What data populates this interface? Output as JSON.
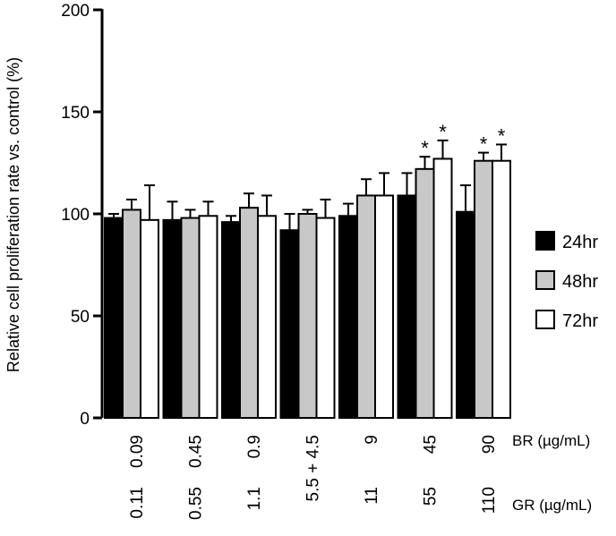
{
  "chart_data": {
    "type": "bar",
    "title": "",
    "ylabel": "Relative cell proliferation rate vs. control (%)",
    "ylim": [
      0,
      200
    ],
    "yticks": [
      0,
      50,
      100,
      150,
      200
    ],
    "grid": false,
    "legend_position": "right",
    "row_labels": {
      "br": "BR (µg/mL)",
      "gr": "GR (µg/mL)"
    },
    "categories_br": [
      "0.09",
      "0.45",
      "0.9",
      "4.5",
      "9",
      "45",
      "90"
    ],
    "categories_gr": [
      "0.11",
      "0.55",
      "1.1",
      "5.5",
      "11",
      "55",
      "110"
    ],
    "plus_sign": "+",
    "plus_category_index": 3,
    "significance_mark": "*",
    "series": [
      {
        "name": "24hr",
        "color": "#000000",
        "values": [
          98,
          97,
          96,
          92,
          99,
          109,
          101
        ],
        "errors": [
          2,
          9,
          3,
          8,
          6,
          11,
          13
        ],
        "significant": [
          false,
          false,
          false,
          false,
          false,
          false,
          false
        ]
      },
      {
        "name": "48hr",
        "color": "#c8c8c8",
        "values": [
          102,
          98,
          103,
          100,
          109,
          122,
          126
        ],
        "errors": [
          5,
          4,
          7,
          2,
          8,
          6,
          4
        ],
        "significant": [
          false,
          false,
          false,
          false,
          false,
          true,
          true
        ]
      },
      {
        "name": "72hr",
        "color": "#ffffff",
        "values": [
          97,
          99,
          99,
          98,
          109,
          127,
          126
        ],
        "errors": [
          17,
          7,
          10,
          9,
          11,
          9,
          8
        ],
        "significant": [
          false,
          false,
          false,
          false,
          false,
          true,
          true
        ]
      }
    ]
  }
}
